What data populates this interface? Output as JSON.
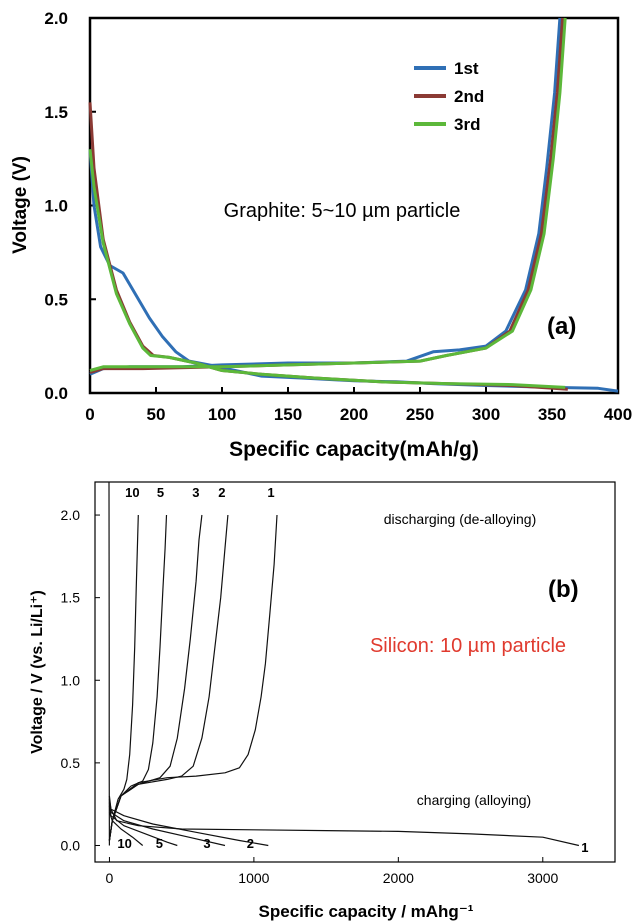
{
  "chart_data": [
    {
      "type": "line",
      "panel": "(a)",
      "annotation": "Graphite: 5~10 µm particle",
      "xlabel": "Specific capacity(mAh/g)",
      "ylabel": "Voltage (V)",
      "xlim": [
        0,
        400
      ],
      "ylim": [
        0.0,
        2.0
      ],
      "xticks": [
        "0",
        "50",
        "100",
        "150",
        "200",
        "250",
        "300",
        "350",
        "400"
      ],
      "yticks": [
        "0.0",
        "0.5",
        "1.0",
        "1.5",
        "2.0"
      ],
      "legend_position": "top-right",
      "grid": false,
      "series": [
        {
          "name": "1st",
          "color": "#2f6fb5",
          "charge": [
            [
              0,
              1.3
            ],
            [
              3,
              1.0
            ],
            [
              8,
              0.78
            ],
            [
              15,
              0.68
            ],
            [
              25,
              0.64
            ],
            [
              35,
              0.52
            ],
            [
              45,
              0.4
            ],
            [
              55,
              0.3
            ],
            [
              65,
              0.22
            ],
            [
              75,
              0.17
            ],
            [
              90,
              0.15
            ],
            [
              110,
              0.12
            ],
            [
              130,
              0.09
            ],
            [
              160,
              0.08
            ],
            [
              200,
              0.065
            ],
            [
              232,
              0.06
            ],
            [
              260,
              0.05
            ],
            [
              300,
              0.04
            ],
            [
              350,
              0.03
            ],
            [
              385,
              0.025
            ],
            [
              400,
              0.01
            ]
          ],
          "discharge": [
            [
              0,
              0.1
            ],
            [
              10,
              0.13
            ],
            [
              30,
              0.14
            ],
            [
              70,
              0.14
            ],
            [
              100,
              0.15
            ],
            [
              150,
              0.16
            ],
            [
              200,
              0.16
            ],
            [
              240,
              0.17
            ],
            [
              260,
              0.22
            ],
            [
              280,
              0.23
            ],
            [
              300,
              0.25
            ],
            [
              315,
              0.33
            ],
            [
              330,
              0.55
            ],
            [
              340,
              0.85
            ],
            [
              346,
              1.2
            ],
            [
              352,
              1.6
            ],
            [
              356,
              2.0
            ]
          ]
        },
        {
          "name": "2nd",
          "color": "#8b3a34",
          "charge": [
            [
              0,
              1.55
            ],
            [
              3,
              1.2
            ],
            [
              10,
              0.82
            ],
            [
              20,
              0.55
            ],
            [
              30,
              0.38
            ],
            [
              40,
              0.25
            ],
            [
              48,
              0.2
            ],
            [
              60,
              0.19
            ],
            [
              80,
              0.16
            ],
            [
              100,
              0.12
            ],
            [
              130,
              0.1
            ],
            [
              170,
              0.08
            ],
            [
              220,
              0.06
            ],
            [
              270,
              0.05
            ],
            [
              320,
              0.04
            ],
            [
              362,
              0.02
            ]
          ],
          "discharge": [
            [
              0,
              0.11
            ],
            [
              10,
              0.13
            ],
            [
              40,
              0.13
            ],
            [
              100,
              0.14
            ],
            [
              150,
              0.15
            ],
            [
              200,
              0.16
            ],
            [
              250,
              0.17
            ],
            [
              270,
              0.2
            ],
            [
              285,
              0.22
            ],
            [
              300,
              0.24
            ],
            [
              318,
              0.33
            ],
            [
              332,
              0.55
            ],
            [
              342,
              0.85
            ],
            [
              349,
              1.25
            ],
            [
              354,
              1.6
            ],
            [
              358,
              2.0
            ]
          ]
        },
        {
          "name": "3rd",
          "color": "#5cb83a",
          "charge": [
            [
              0,
              1.3
            ],
            [
              3,
              1.1
            ],
            [
              10,
              0.8
            ],
            [
              20,
              0.53
            ],
            [
              30,
              0.37
            ],
            [
              40,
              0.24
            ],
            [
              46,
              0.2
            ],
            [
              60,
              0.19
            ],
            [
              80,
              0.16
            ],
            [
              100,
              0.12
            ],
            [
              130,
              0.1
            ],
            [
              170,
              0.08
            ],
            [
              220,
              0.06
            ],
            [
              270,
              0.05
            ],
            [
              320,
              0.045
            ],
            [
              360,
              0.03
            ]
          ],
          "discharge": [
            [
              0,
              0.12
            ],
            [
              10,
              0.14
            ],
            [
              40,
              0.14
            ],
            [
              100,
              0.14
            ],
            [
              150,
              0.15
            ],
            [
              200,
              0.16
            ],
            [
              250,
              0.17
            ],
            [
              270,
              0.2
            ],
            [
              285,
              0.22
            ],
            [
              300,
              0.24
            ],
            [
              320,
              0.33
            ],
            [
              334,
              0.55
            ],
            [
              344,
              0.85
            ],
            [
              351,
              1.25
            ],
            [
              356,
              1.6
            ],
            [
              360,
              2.0
            ]
          ]
        }
      ]
    },
    {
      "type": "line",
      "panel": "(b)",
      "annotation": "Silicon: 10 µm particle",
      "annotation_color": "#e03a2e",
      "xlabel": "Specific capacity / mAhg⁻¹",
      "ylabel": "Voltage / V (vs. Li/Li⁺)",
      "xlim": [
        -100,
        3500
      ],
      "ylim": [
        -0.1,
        2.2
      ],
      "xticks": [
        "0",
        "1000",
        "2000",
        "3000"
      ],
      "yticks": [
        "0.0",
        "0.5",
        "1.0",
        "1.5",
        "2.0"
      ],
      "text_labels": [
        "discharging (de-alloying)",
        "charging (alloying)"
      ],
      "grid": false,
      "series": [
        {
          "name": "1",
          "color": "#111111",
          "charge": [
            [
              0,
              0.3
            ],
            [
              10,
              0.22
            ],
            [
              50,
              0.15
            ],
            [
              200,
              0.12
            ],
            [
              500,
              0.1
            ],
            [
              1000,
              0.095
            ],
            [
              1500,
              0.09
            ],
            [
              2000,
              0.085
            ],
            [
              2500,
              0.07
            ],
            [
              3000,
              0.05
            ],
            [
              3250,
              0.0
            ]
          ],
          "discharge": [
            [
              0,
              0.03
            ],
            [
              20,
              0.15
            ],
            [
              80,
              0.3
            ],
            [
              200,
              0.38
            ],
            [
              400,
              0.41
            ],
            [
              600,
              0.42
            ],
            [
              800,
              0.44
            ],
            [
              900,
              0.47
            ],
            [
              960,
              0.55
            ],
            [
              1010,
              0.7
            ],
            [
              1050,
              0.9
            ],
            [
              1080,
              1.1
            ],
            [
              1110,
              1.4
            ],
            [
              1140,
              1.7
            ],
            [
              1160,
              2.0
            ]
          ]
        },
        {
          "name": "2",
          "color": "#111111",
          "charge": [
            [
              0,
              0.28
            ],
            [
              10,
              0.22
            ],
            [
              100,
              0.18
            ],
            [
              300,
              0.13
            ],
            [
              600,
              0.08
            ],
            [
              900,
              0.03
            ],
            [
              1100,
              0.0
            ]
          ],
          "discharge": [
            [
              0,
              0.03
            ],
            [
              20,
              0.15
            ],
            [
              80,
              0.3
            ],
            [
              200,
              0.37
            ],
            [
              400,
              0.4
            ],
            [
              500,
              0.42
            ],
            [
              580,
              0.48
            ],
            [
              640,
              0.65
            ],
            [
              690,
              0.9
            ],
            [
              730,
              1.2
            ],
            [
              770,
              1.5
            ],
            [
              800,
              1.8
            ],
            [
              820,
              2.0
            ]
          ]
        },
        {
          "name": "3",
          "color": "#111111",
          "charge": [
            [
              0,
              0.26
            ],
            [
              10,
              0.2
            ],
            [
              100,
              0.15
            ],
            [
              300,
              0.1
            ],
            [
              550,
              0.05
            ],
            [
              800,
              0.0
            ]
          ],
          "discharge": [
            [
              0,
              0.03
            ],
            [
              20,
              0.15
            ],
            [
              80,
              0.3
            ],
            [
              200,
              0.37
            ],
            [
              350,
              0.41
            ],
            [
              420,
              0.48
            ],
            [
              470,
              0.65
            ],
            [
              520,
              0.95
            ],
            [
              560,
              1.25
            ],
            [
              600,
              1.6
            ],
            [
              620,
              1.85
            ],
            [
              640,
              2.0
            ]
          ]
        },
        {
          "name": "5",
          "color": "#111111",
          "charge": [
            [
              0,
              0.24
            ],
            [
              10,
              0.18
            ],
            [
              100,
              0.12
            ],
            [
              250,
              0.07
            ],
            [
              400,
              0.02
            ],
            [
              470,
              0.0
            ]
          ],
          "discharge": [
            [
              0,
              0.03
            ],
            [
              20,
              0.15
            ],
            [
              80,
              0.3
            ],
            [
              150,
              0.36
            ],
            [
              230,
              0.39
            ],
            [
              270,
              0.46
            ],
            [
              300,
              0.62
            ],
            [
              330,
              0.9
            ],
            [
              350,
              1.2
            ],
            [
              370,
              1.55
            ],
            [
              385,
              1.8
            ],
            [
              395,
              2.0
            ]
          ]
        },
        {
          "name": "10",
          "color": "#111111",
          "charge": [
            [
              0,
              0.2
            ],
            [
              20,
              0.15
            ],
            [
              80,
              0.1
            ],
            [
              160,
              0.05
            ],
            [
              230,
              0.0
            ]
          ],
          "discharge": [
            [
              0,
              0.03
            ],
            [
              20,
              0.15
            ],
            [
              60,
              0.28
            ],
            [
              100,
              0.34
            ],
            [
              120,
              0.4
            ],
            [
              140,
              0.55
            ],
            [
              160,
              0.85
            ],
            [
              175,
              1.2
            ],
            [
              185,
              1.55
            ],
            [
              195,
              1.85
            ],
            [
              200,
              2.0
            ]
          ]
        }
      ]
    }
  ]
}
